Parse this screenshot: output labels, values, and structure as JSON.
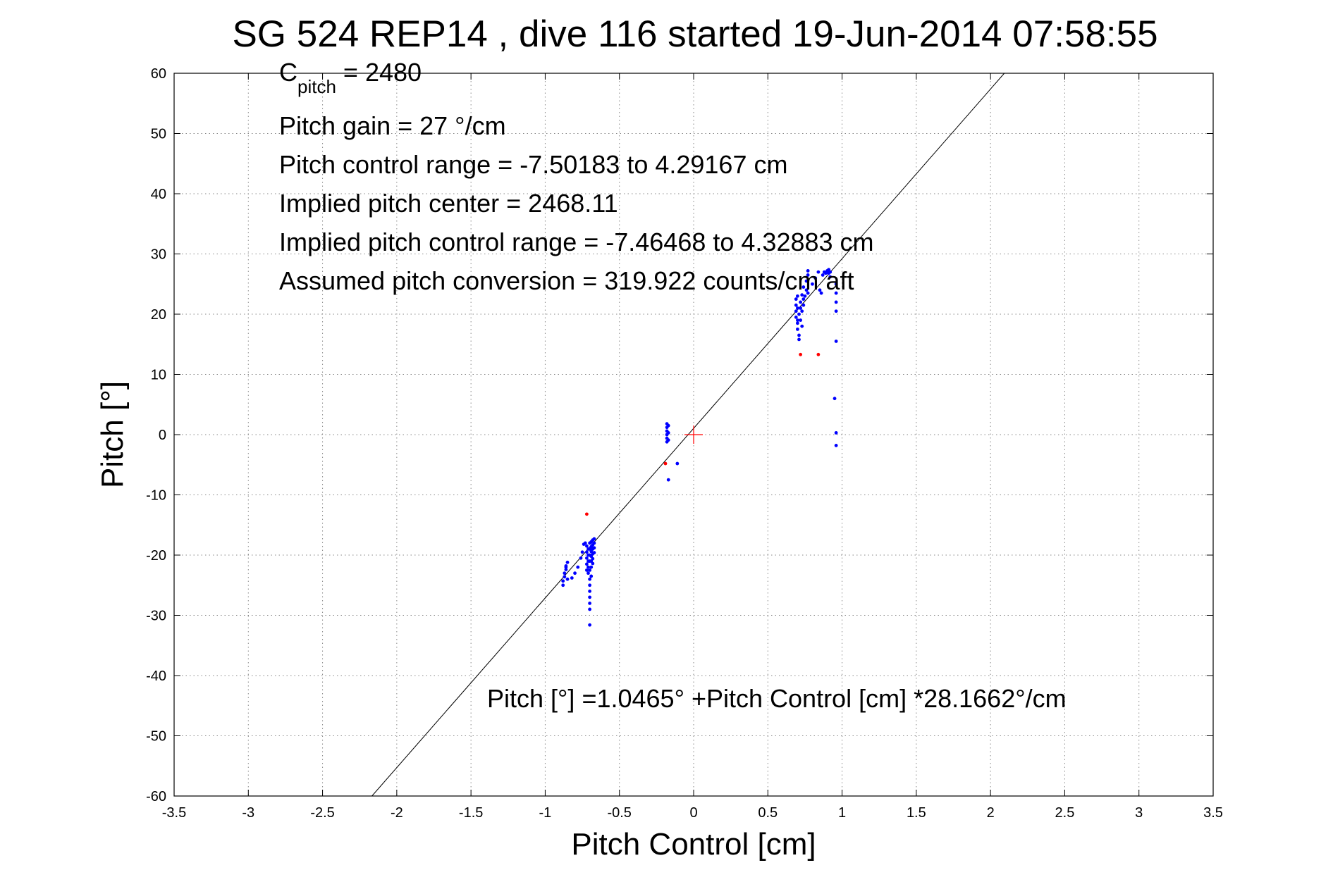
{
  "chart_data": {
    "type": "scatter",
    "title": "SG 524   REP14  , dive 116 started 19-Jun-2014 07:58:55",
    "xlabel": "Pitch Control [cm]",
    "ylabel": "Pitch [°]",
    "xlim": [
      -3.5,
      3.5
    ],
    "ylim": [
      -60,
      60
    ],
    "xticks": [
      "-3.5",
      "-3",
      "-2.5",
      "-2",
      "-1.5",
      "-1",
      "-0.5",
      "0",
      "0.5",
      "1",
      "1.5",
      "2",
      "2.5",
      "3",
      "3.5"
    ],
    "yticks": [
      "60",
      "50",
      "40",
      "30",
      "20",
      "10",
      "0",
      "-10",
      "-20",
      "-30",
      "-40",
      "-50",
      "-60"
    ],
    "grid": true,
    "annotations": {
      "c_pitch_main": "C",
      "c_pitch_sub": "pitch",
      "c_pitch_value": " = 2480",
      "pitch_gain": "Pitch gain = 27 °/cm",
      "pitch_control_range": "Pitch control range = -7.50183 to 4.29167 cm",
      "implied_pitch_center": "Implied pitch center = 2468.11",
      "implied_control_range": "Implied pitch control range = -7.46468 to 4.32883 cm",
      "assumed_conversion": "Assumed pitch conversion = 319.922 counts/cm aft",
      "fit_equation": "Pitch [°] =1.0465° +Pitch Control [cm] *28.1662°/cm"
    },
    "fit_line": {
      "intercept": 1.0465,
      "slope": 28.1662
    },
    "center_marker": {
      "x": 0,
      "y": 0,
      "color": "#ff0000"
    },
    "series": [
      {
        "color": "#0000ff",
        "points": [
          [
            -0.88,
            -25
          ],
          [
            -0.88,
            -24.3
          ],
          [
            -0.87,
            -23.6
          ],
          [
            -0.87,
            -23
          ],
          [
            -0.86,
            -22.4
          ],
          [
            -0.86,
            -21.8
          ],
          [
            -0.85,
            -21.2
          ],
          [
            -0.85,
            -24
          ],
          [
            -0.86,
            -22
          ],
          [
            -0.82,
            -23.8
          ],
          [
            -0.8,
            -23
          ],
          [
            -0.78,
            -22
          ],
          [
            -0.76,
            -20.5
          ],
          [
            -0.75,
            -19.5
          ],
          [
            -0.74,
            -18.2
          ],
          [
            -0.73,
            -18
          ],
          [
            -0.72,
            -18.5
          ],
          [
            -0.72,
            -19.5
          ],
          [
            -0.72,
            -20.5
          ],
          [
            -0.72,
            -21.5
          ],
          [
            -0.72,
            -22.5
          ],
          [
            -0.71,
            -23
          ],
          [
            -0.71,
            -19
          ],
          [
            -0.71,
            -20
          ],
          [
            -0.71,
            -21
          ],
          [
            -0.71,
            -22
          ],
          [
            -0.7,
            -18
          ],
          [
            -0.7,
            -19
          ],
          [
            -0.7,
            -20
          ],
          [
            -0.7,
            -21
          ],
          [
            -0.7,
            -22.5
          ],
          [
            -0.7,
            -24
          ],
          [
            -0.7,
            -25
          ],
          [
            -0.7,
            -26
          ],
          [
            -0.7,
            -27
          ],
          [
            -0.7,
            -28
          ],
          [
            -0.7,
            -29
          ],
          [
            -0.7,
            -31.6
          ],
          [
            -0.69,
            -17.8
          ],
          [
            -0.69,
            -18.6
          ],
          [
            -0.69,
            -19.4
          ],
          [
            -0.69,
            -20.2
          ],
          [
            -0.69,
            -21
          ],
          [
            -0.69,
            -22
          ],
          [
            -0.69,
            -23.5
          ],
          [
            -0.68,
            -17.5
          ],
          [
            -0.68,
            -18.3
          ],
          [
            -0.68,
            -19
          ],
          [
            -0.68,
            -19.8
          ],
          [
            -0.68,
            -20.6
          ],
          [
            -0.68,
            -21.4
          ],
          [
            -0.67,
            -17.3
          ],
          [
            -0.67,
            -18
          ],
          [
            -0.67,
            -18.8
          ],
          [
            -0.67,
            -19.6
          ],
          [
            -0.18,
            1.8
          ],
          [
            -0.18,
            1.2
          ],
          [
            -0.18,
            0.6
          ],
          [
            -0.18,
            0
          ],
          [
            -0.18,
            -0.6
          ],
          [
            -0.18,
            -1.2
          ],
          [
            -0.17,
            1.5
          ],
          [
            -0.17,
            0.3
          ],
          [
            -0.17,
            -0.9
          ],
          [
            -0.17,
            -7.5
          ],
          [
            -0.11,
            -4.8
          ],
          [
            0.69,
            22.5
          ],
          [
            0.69,
            21.5
          ],
          [
            0.69,
            20.5
          ],
          [
            0.69,
            19.5
          ],
          [
            0.7,
            18.5
          ],
          [
            0.7,
            17.5
          ],
          [
            0.7,
            23
          ],
          [
            0.7,
            21
          ],
          [
            0.7,
            19
          ],
          [
            0.71,
            16.5
          ],
          [
            0.71,
            15.8
          ],
          [
            0.71,
            20
          ],
          [
            0.72,
            22
          ],
          [
            0.72,
            21
          ],
          [
            0.72,
            19
          ],
          [
            0.73,
            23.2
          ],
          [
            0.73,
            20.5
          ],
          [
            0.73,
            18
          ],
          [
            0.74,
            24.5
          ],
          [
            0.74,
            22.5
          ],
          [
            0.74,
            21.5
          ],
          [
            0.75,
            23
          ],
          [
            0.76,
            24
          ],
          [
            0.76,
            25.5
          ],
          [
            0.77,
            26.5
          ],
          [
            0.77,
            27.2
          ],
          [
            0.77,
            23.5
          ],
          [
            0.8,
            25
          ],
          [
            0.82,
            26
          ],
          [
            0.84,
            27
          ],
          [
            0.85,
            24
          ],
          [
            0.86,
            23.5
          ],
          [
            0.87,
            26.5
          ],
          [
            0.88,
            27
          ],
          [
            0.89,
            26.8
          ],
          [
            0.9,
            27.2
          ],
          [
            0.91,
            27.4
          ],
          [
            0.91,
            26.8
          ],
          [
            0.92,
            27
          ],
          [
            0.92,
            26.2
          ],
          [
            0.96,
            25
          ],
          [
            0.96,
            23.5
          ],
          [
            0.96,
            22
          ],
          [
            0.96,
            20.5
          ],
          [
            0.96,
            15.5
          ],
          [
            0.95,
            6
          ],
          [
            0.96,
            0.3
          ],
          [
            0.96,
            -1.8
          ]
        ]
      },
      {
        "color": "#ff0000",
        "points": [
          [
            -0.72,
            -13.2
          ],
          [
            -0.19,
            -4.8
          ],
          [
            0.72,
            13.3
          ],
          [
            0.84,
            13.3
          ]
        ]
      }
    ]
  }
}
